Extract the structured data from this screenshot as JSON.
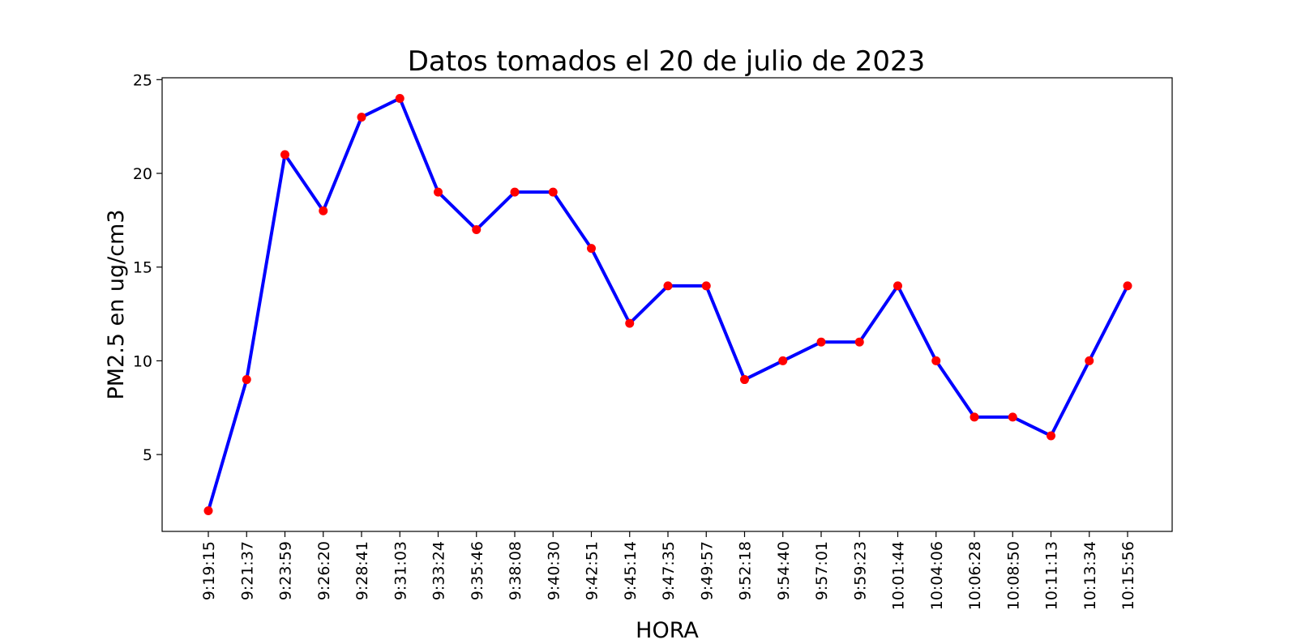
{
  "chart_data": {
    "type": "line",
    "title": "Datos tomados el 20 de julio de 2023",
    "xlabel": "HORA",
    "ylabel": "PM2.5 en ug/cm3",
    "categories": [
      "9:19:15",
      "9:21:37",
      "9:23:59",
      "9:26:20",
      "9:28:41",
      "9:31:03",
      "9:33:24",
      "9:35:46",
      "9:38:08",
      "9:40:30",
      "9:42:51",
      "9:45:14",
      "9:47:35",
      "9:49:57",
      "9:52:18",
      "9:54:40",
      "9:57:01",
      "9:59:23",
      "10:01:44",
      "10:04:06",
      "10:06:28",
      "10:08:50",
      "10:11:13",
      "10:13:34",
      "10:15:56"
    ],
    "series": [
      {
        "values": [
          2,
          9,
          21,
          18,
          23,
          24,
          19,
          17,
          19,
          19,
          16,
          12,
          14,
          14,
          9,
          10,
          11,
          11,
          14,
          10,
          7,
          7,
          6,
          10,
          14
        ]
      }
    ],
    "ylim": [
      0.9,
      25.1
    ],
    "yticks": [
      5,
      10,
      15,
      20,
      25
    ],
    "grid": false,
    "colors": {
      "line": "#0000ff",
      "marker": "#ff0000"
    }
  }
}
